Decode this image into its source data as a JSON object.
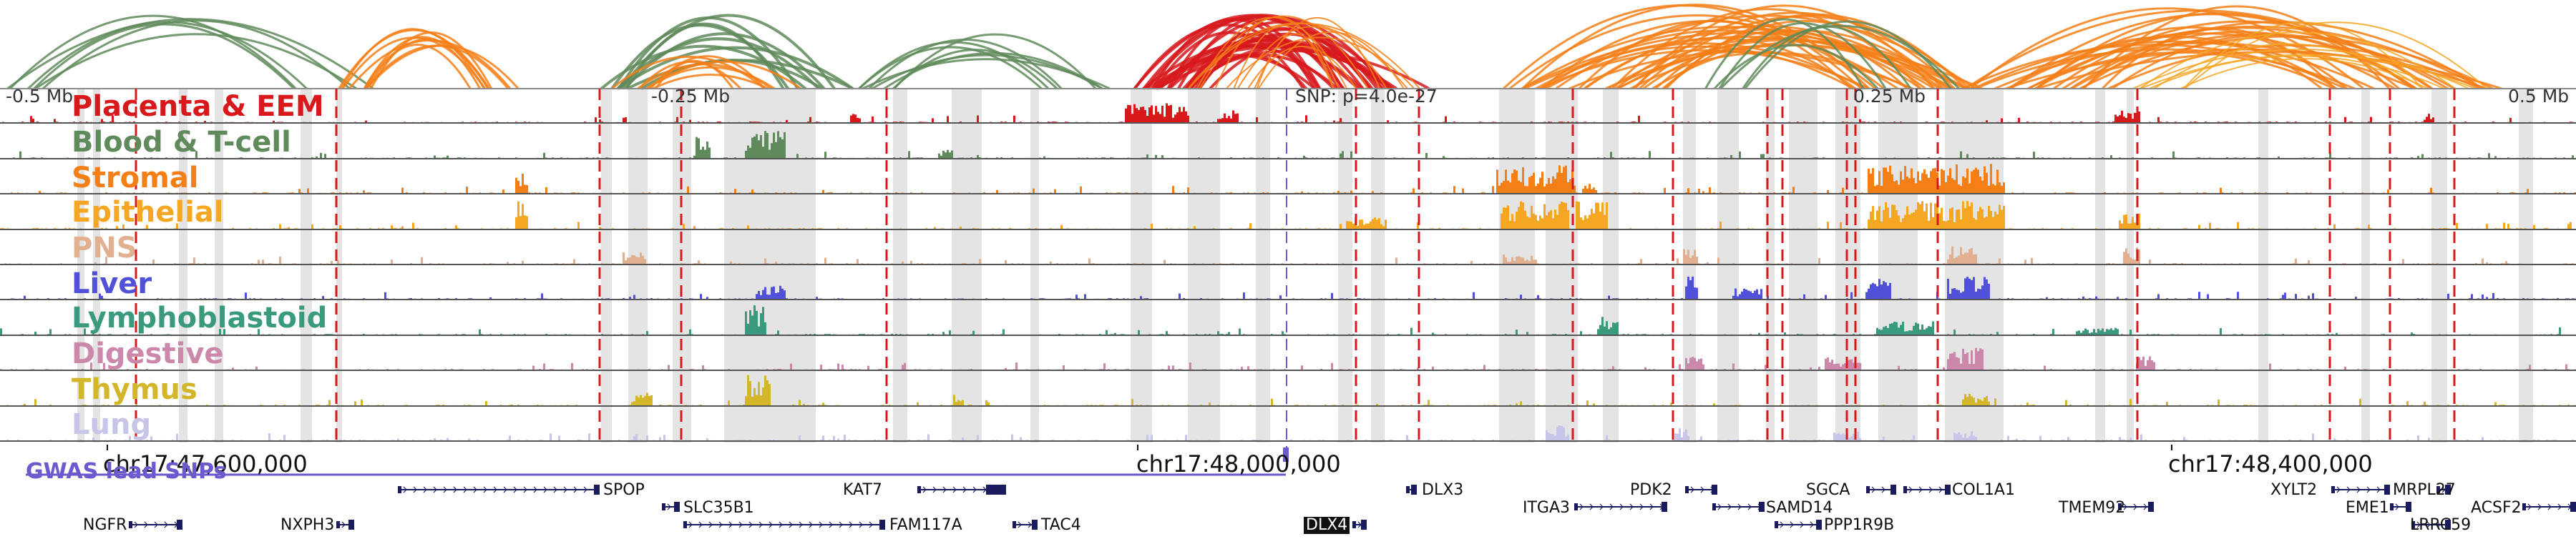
{
  "coordinates": {
    "offsets": [
      "-0.5 Mb",
      "-0.25 Mb",
      "0.25 Mb",
      "0.5 Mb"
    ],
    "snp_annotation": "SNP: p=4.0e-27",
    "chromosome_ticks": [
      "chr17:47,600,000",
      "chr17:48,000,000",
      "chr17:48,400,000"
    ]
  },
  "tracks": [
    {
      "name": "Placenta & EEM",
      "color": "#d7191c"
    },
    {
      "name": "Blood & T-cell",
      "color": "#5f8a5b"
    },
    {
      "name": "Stromal",
      "color": "#f57f17"
    },
    {
      "name": "Epithelial",
      "color": "#f5a623"
    },
    {
      "name": "PNS",
      "color": "#e0b090"
    },
    {
      "name": "Liver",
      "color": "#5050d8"
    },
    {
      "name": "Lymphoblastoid",
      "color": "#3a9a7e"
    },
    {
      "name": "Digestive",
      "color": "#cc88aa"
    },
    {
      "name": "Thymus",
      "color": "#d4b62a"
    },
    {
      "name": "Lung",
      "color": "#c8c6e8"
    }
  ],
  "gwas_label": "GWAS lead SNPs",
  "genes": [
    {
      "name": "SPOP",
      "strand": "-"
    },
    {
      "name": "KAT7",
      "strand": "+"
    },
    {
      "name": "DLX3",
      "strand": "-"
    },
    {
      "name": "PDK2",
      "strand": "+"
    },
    {
      "name": "SGCA",
      "strand": "+"
    },
    {
      "name": "COL1A1",
      "strand": "-"
    },
    {
      "name": "XYLT2",
      "strand": "+"
    },
    {
      "name": "MRPL27",
      "strand": "-"
    },
    {
      "name": "SLC35B1",
      "strand": "-"
    },
    {
      "name": "ITGA3",
      "strand": "+"
    },
    {
      "name": "SAMD14",
      "strand": "-"
    },
    {
      "name": "TMEM92",
      "strand": "+"
    },
    {
      "name": "EME1",
      "strand": "+"
    },
    {
      "name": "ACSF2",
      "strand": "+"
    },
    {
      "name": "NGFR",
      "strand": "+"
    },
    {
      "name": "NXPH3",
      "strand": "+"
    },
    {
      "name": "FAM117A",
      "strand": "-"
    },
    {
      "name": "TAC4",
      "strand": "-"
    },
    {
      "name": "DLX4",
      "strand": "+",
      "highlight": true
    },
    {
      "name": "PPP1R9B",
      "strand": "+"
    },
    {
      "name": "LRRC59",
      "strand": "-"
    }
  ],
  "colors": {
    "snp_marker": "#6a5acd",
    "boundary_line": "#d7191c",
    "shade": "#e4e4e4",
    "track_border": "#555555"
  }
}
